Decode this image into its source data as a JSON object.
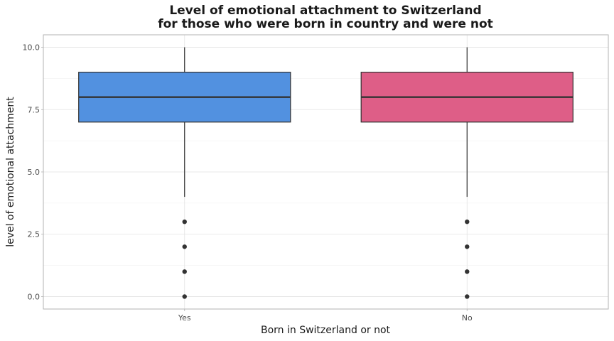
{
  "chart_data": {
    "type": "boxplot",
    "title": "Level of emotional attachment to Switzerland",
    "subtitle": "for those who were born in country and were not",
    "xlabel": "Born in Switzerland or not",
    "ylabel": "level of emotional attachment",
    "ylim": [
      -0.5,
      10.5
    ],
    "yticks": [
      0.0,
      2.5,
      5.0,
      7.5,
      10.0
    ],
    "ytick_labels": [
      "0.0",
      "2.5",
      "5.0",
      "7.5",
      "10.0"
    ],
    "grid": true,
    "legend": "none",
    "categories": [
      "Yes",
      "No"
    ],
    "boxes": [
      {
        "category": "Yes",
        "whisker_low": 4,
        "q1": 7,
        "median": 8,
        "q3": 9,
        "whisker_high": 10,
        "outliers": [
          3,
          2,
          1,
          0
        ],
        "color": "#5291e0"
      },
      {
        "category": "No",
        "whisker_low": 4,
        "q1": 7,
        "median": 8,
        "q3": 9,
        "whisker_high": 10,
        "outliers": [
          3,
          2,
          1,
          0
        ],
        "color": "#de5e87"
      }
    ]
  }
}
